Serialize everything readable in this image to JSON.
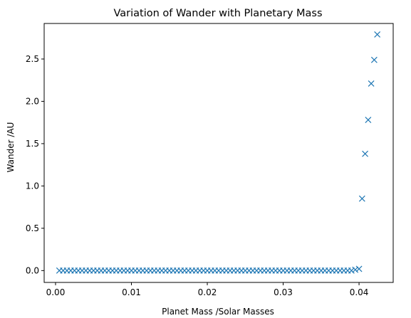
{
  "chart_data": {
    "type": "scatter",
    "title": "Variation of Wander with Planetary Mass",
    "xlabel": "Planet Mass /Solar Masses",
    "ylabel": "Wander /AU",
    "xlim": [
      -0.0015,
      0.0445
    ],
    "ylim": [
      -0.14,
      2.92
    ],
    "xticks": [
      0.0,
      0.01,
      0.02,
      0.03,
      0.04
    ],
    "xtick_labels": [
      "0.00",
      "0.01",
      "0.02",
      "0.03",
      "0.04"
    ],
    "yticks": [
      0.0,
      0.5,
      1.0,
      1.5,
      2.0,
      2.5
    ],
    "ytick_labels": [
      "0.0",
      "0.5",
      "1.0",
      "1.5",
      "2.0",
      "2.5"
    ],
    "grid": false,
    "marker": "x",
    "color": "#1f77b4",
    "series": [
      {
        "x": [
          0.0005,
          0.001,
          0.0015,
          0.002,
          0.0025,
          0.003,
          0.0035,
          0.004,
          0.0045,
          0.005,
          0.0055,
          0.006,
          0.0065,
          0.007,
          0.0075,
          0.008,
          0.0085,
          0.009,
          0.0095,
          0.01,
          0.0105,
          0.011,
          0.0115,
          0.012,
          0.0125,
          0.013,
          0.0135,
          0.014,
          0.0145,
          0.015,
          0.0155,
          0.016,
          0.0165,
          0.017,
          0.0175,
          0.018,
          0.0185,
          0.019,
          0.0195,
          0.02,
          0.0205,
          0.021,
          0.0215,
          0.022,
          0.0225,
          0.023,
          0.0235,
          0.024,
          0.0245,
          0.025,
          0.0255,
          0.026,
          0.0265,
          0.027,
          0.0275,
          0.028,
          0.0285,
          0.029,
          0.0295,
          0.03,
          0.0305,
          0.031,
          0.0315,
          0.032,
          0.0325,
          0.033,
          0.0335,
          0.034,
          0.0345,
          0.035,
          0.0355,
          0.036,
          0.0365,
          0.037,
          0.0375,
          0.038,
          0.0385,
          0.039,
          0.0395,
          0.04,
          0.0404,
          0.0408,
          0.0412,
          0.0416,
          0.042,
          0.0424
        ],
        "y": [
          0,
          0,
          0,
          0,
          0,
          0,
          0,
          0,
          0,
          0,
          0,
          0,
          0,
          0,
          0,
          0,
          0,
          0,
          0,
          0,
          0,
          0,
          0,
          0,
          0,
          0,
          0,
          0,
          0,
          0,
          0,
          0,
          0,
          0,
          0,
          0,
          0,
          0,
          0,
          0,
          0,
          0,
          0,
          0,
          0,
          0,
          0,
          0,
          0,
          0,
          0,
          0,
          0,
          0,
          0,
          0,
          0,
          0,
          0,
          0,
          0,
          0,
          0,
          0,
          0,
          0,
          0,
          0,
          0,
          0,
          0,
          0,
          0,
          0,
          0,
          0,
          0,
          0,
          0.01,
          0.02,
          0.85,
          1.38,
          1.78,
          2.21,
          2.49,
          2.79
        ]
      }
    ]
  }
}
